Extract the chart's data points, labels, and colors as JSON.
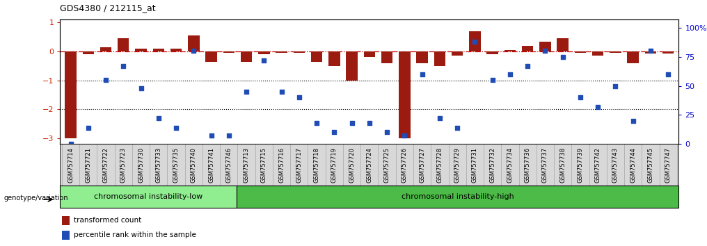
{
  "title": "GDS4380 / 212115_at",
  "samples": [
    "GSM757714",
    "GSM757721",
    "GSM757722",
    "GSM757723",
    "GSM757730",
    "GSM757733",
    "GSM757735",
    "GSM757740",
    "GSM757741",
    "GSM757746",
    "GSM757713",
    "GSM757715",
    "GSM757716",
    "GSM757717",
    "GSM757718",
    "GSM757719",
    "GSM757720",
    "GSM757724",
    "GSM757725",
    "GSM757726",
    "GSM757727",
    "GSM757728",
    "GSM757729",
    "GSM757731",
    "GSM757732",
    "GSM757734",
    "GSM757736",
    "GSM757737",
    "GSM757738",
    "GSM757739",
    "GSM757742",
    "GSM757743",
    "GSM757744",
    "GSM757745",
    "GSM757747"
  ],
  "bar_values": [
    -3.0,
    -0.1,
    0.15,
    0.45,
    0.1,
    0.1,
    0.1,
    0.55,
    -0.35,
    -0.05,
    -0.35,
    -0.1,
    -0.05,
    -0.05,
    -0.35,
    -0.5,
    -1.0,
    -0.2,
    -0.4,
    -3.0,
    -0.4,
    -0.5,
    -0.15,
    0.7,
    -0.1,
    0.05,
    0.2,
    0.35,
    0.45,
    -0.05,
    -0.15,
    -0.05,
    -0.4,
    -0.08,
    -0.08
  ],
  "percentile_values": [
    0,
    14,
    55,
    67,
    48,
    22,
    14,
    80,
    7,
    7,
    45,
    72,
    45,
    40,
    18,
    10,
    18,
    18,
    10,
    7,
    60,
    22,
    14,
    88,
    55,
    60,
    67,
    80,
    75,
    40,
    32,
    50,
    20,
    80,
    60
  ],
  "bar_color": "#9B1B10",
  "dot_color": "#1F4DB5",
  "dashed_line_color": "#CC0000",
  "low_group_count": 10,
  "low_group_label": "chromosomal instability-low",
  "high_group_label": "chromosomal instability-high",
  "low_group_color": "#90EE90",
  "high_group_color": "#4CBB47",
  "genotype_label": "genotype/variation",
  "legend_bar_label": "transformed count",
  "legend_dot_label": "percentile rank within the sample",
  "ylim_left": [
    -3.2,
    1.1
  ],
  "ylim_right": [
    0,
    107
  ],
  "yticks_left": [
    -3,
    -2,
    -1,
    0,
    1
  ],
  "yticks_right": [
    0,
    25,
    50,
    75,
    100
  ],
  "yticklabels_right": [
    "0",
    "25",
    "50",
    "75",
    "100%"
  ],
  "background_color": "#ffffff",
  "plot_bg_color": "#ffffff",
  "tick_label_color_left": "#CC2200",
  "tick_label_color_right": "#0000CC"
}
